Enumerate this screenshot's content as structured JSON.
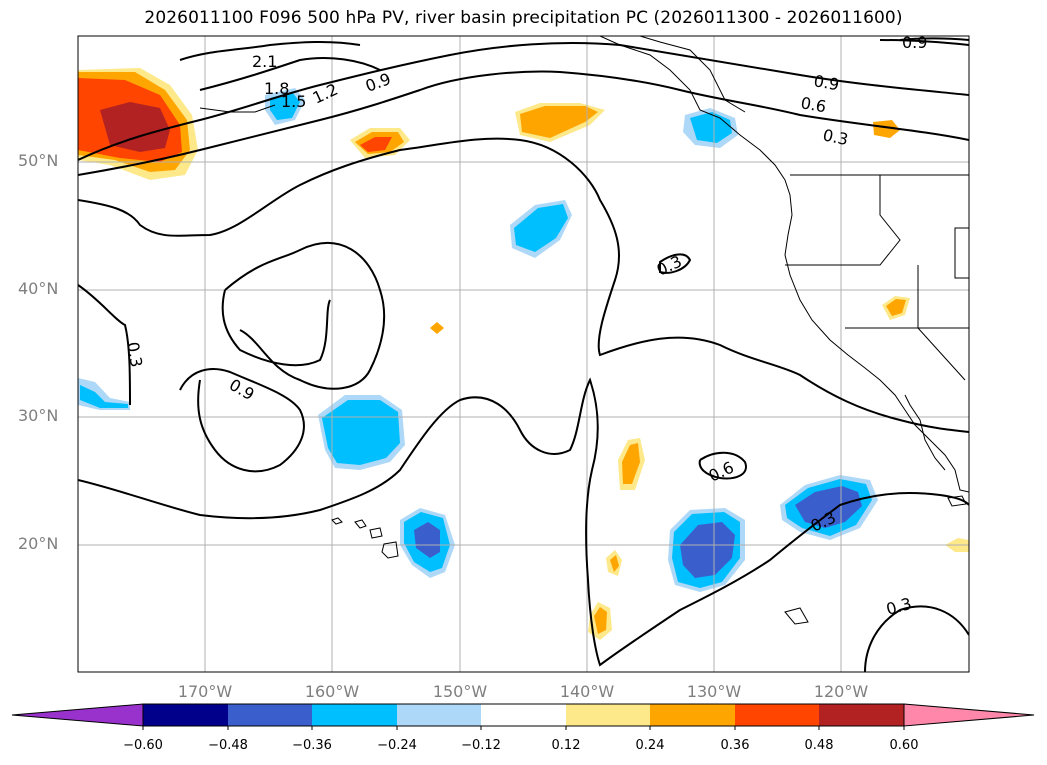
{
  "title": "2026011100 F096 500 hPa PV, river basin precipitation PC (2026011300 - 2026011600)",
  "lat_labels": [
    "50°N",
    "40°N",
    "30°N",
    "20°N"
  ],
  "lon_labels": [
    "170°W",
    "160°W",
    "150°W",
    "140°W",
    "130°W",
    "120°W"
  ],
  "contour_labels": [
    "2.1",
    "1.8",
    "1.5",
    "1.2",
    "0.9",
    "0.9",
    "0.9",
    "0.6",
    "0.3",
    "0.3",
    "0.9",
    "0.3",
    "0.6",
    "0.3",
    "0.3"
  ],
  "colorbar": {
    "ticks": [
      "−0.60",
      "−0.48",
      "−0.36",
      "−0.24",
      "−0.12",
      "0.12",
      "0.24",
      "0.36",
      "0.48",
      "0.60"
    ],
    "colors": [
      "#9932cc",
      "#00008b",
      "#3a5fcd",
      "#00bfff",
      "#add8f7",
      "#ffffff",
      "#fde88a",
      "#ffa500",
      "#ff4500",
      "#b22222",
      "#ff88aa"
    ]
  },
  "colors": {
    "land_line": "#000000",
    "grid": "#b0b0b0",
    "contour": "#000000"
  }
}
